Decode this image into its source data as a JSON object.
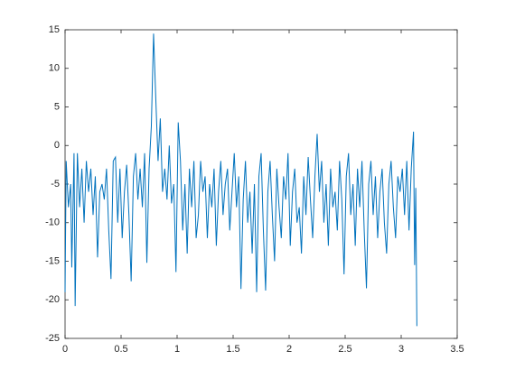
{
  "chart_data": {
    "type": "line",
    "x": [
      0,
      0.01,
      0.03,
      0.05,
      0.06,
      0.08,
      0.09,
      0.11,
      0.13,
      0.15,
      0.17,
      0.19,
      0.21,
      0.23,
      0.25,
      0.27,
      0.29,
      0.31,
      0.33,
      0.35,
      0.37,
      0.39,
      0.41,
      0.43,
      0.45,
      0.47,
      0.49,
      0.51,
      0.53,
      0.55,
      0.57,
      0.59,
      0.61,
      0.63,
      0.65,
      0.67,
      0.69,
      0.71,
      0.73,
      0.75,
      0.77,
      0.79,
      0.81,
      0.83,
      0.85,
      0.87,
      0.89,
      0.91,
      0.93,
      0.95,
      0.97,
      0.99,
      1.01,
      1.03,
      1.05,
      1.07,
      1.09,
      1.11,
      1.13,
      1.15,
      1.17,
      1.19,
      1.21,
      1.23,
      1.25,
      1.27,
      1.29,
      1.31,
      1.33,
      1.35,
      1.37,
      1.39,
      1.41,
      1.43,
      1.45,
      1.47,
      1.49,
      1.51,
      1.53,
      1.55,
      1.57,
      1.59,
      1.61,
      1.63,
      1.65,
      1.67,
      1.69,
      1.71,
      1.73,
      1.75,
      1.77,
      1.79,
      1.81,
      1.83,
      1.85,
      1.87,
      1.89,
      1.91,
      1.93,
      1.95,
      1.97,
      1.99,
      2.01,
      2.03,
      2.05,
      2.07,
      2.09,
      2.11,
      2.13,
      2.15,
      2.17,
      2.19,
      2.21,
      2.23,
      2.25,
      2.27,
      2.29,
      2.31,
      2.33,
      2.35,
      2.37,
      2.39,
      2.41,
      2.43,
      2.45,
      2.47,
      2.49,
      2.51,
      2.53,
      2.55,
      2.57,
      2.59,
      2.61,
      2.63,
      2.65,
      2.67,
      2.69,
      2.71,
      2.73,
      2.75,
      2.77,
      2.79,
      2.81,
      2.83,
      2.85,
      2.87,
      2.89,
      2.91,
      2.93,
      2.95,
      2.97,
      2.99,
      3.01,
      3.03,
      3.05,
      3.07,
      3.09,
      3.11,
      3.12,
      3.13,
      3.14
    ],
    "series": [
      {
        "color": "#0072bd",
        "values": [
          -19,
          -2,
          -8,
          -5,
          -15.8,
          -1,
          -20.8,
          -1,
          -8,
          -3,
          -10,
          -2,
          -6,
          -3,
          -9,
          -4,
          -14.5,
          -6,
          -5,
          -7,
          -3,
          -11,
          -17.3,
          -2,
          -1.5,
          -10,
          -3,
          -12,
          -6,
          -2.5,
          -9,
          -17.6,
          -4,
          -1,
          -7,
          -3,
          -8,
          -1,
          -15.2,
          -3,
          2.5,
          14.5,
          6,
          -2,
          3.5,
          -6,
          -3,
          -7,
          0,
          -7.5,
          -5,
          -16.4,
          3,
          -2,
          -11,
          -5,
          -14,
          -3,
          -8,
          -2,
          -12,
          -9,
          -2,
          -6,
          -4,
          -12,
          -5,
          -8,
          -3,
          -13,
          -6,
          -2,
          -9,
          -5,
          -3,
          -11,
          -6,
          -1,
          -8,
          -4,
          -18.6,
          -7,
          -2,
          -10,
          -6,
          -14,
          -5,
          -19,
          -4,
          -1,
          -11,
          -18.8,
          -6,
          -2,
          -9,
          -15,
          -3,
          -8,
          -12,
          -4,
          -7,
          -1,
          -13,
          -6,
          -3,
          -10,
          -8,
          -14,
          -4,
          -9,
          -1.5,
          -7,
          -12,
          -4,
          1.5,
          -6,
          -2,
          -10,
          -5,
          -13,
          -3,
          -8,
          -6,
          -11,
          -2,
          -7,
          -16.7,
          -4,
          -1,
          -9,
          -5,
          -13,
          -3,
          -8,
          -2,
          -11,
          -18.5,
          -5,
          -2,
          -9,
          -4,
          -12,
          -6,
          -3,
          -10,
          -14,
          -5,
          -2,
          -8,
          -12,
          -4,
          -6,
          -3,
          -9,
          -2,
          -11,
          -3,
          1.8,
          -15.5,
          -5.5,
          -23.4
        ]
      }
    ],
    "xlim": [
      0,
      3.5
    ],
    "xticks": [
      0,
      0.5,
      1,
      1.5,
      2,
      2.5,
      3,
      3.5
    ],
    "ylim": [
      -25,
      15
    ],
    "yticks": [
      -25,
      -20,
      -15,
      -10,
      -5,
      0,
      5,
      10,
      15
    ]
  }
}
